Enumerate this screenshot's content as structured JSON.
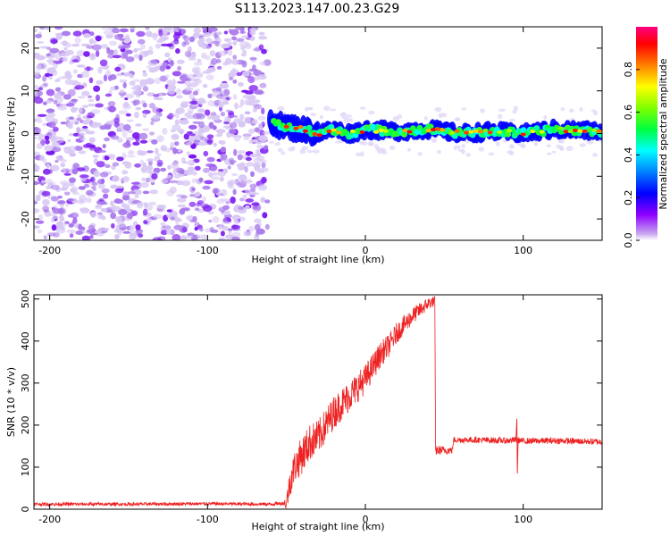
{
  "title": "S113.2023.147.00.23.G29",
  "chart_data": [
    {
      "type": "heatmap",
      "xlabel": "Height of straight line (km)",
      "ylabel": "Frequency (Hz)",
      "xlim": [
        -210,
        150
      ],
      "ylim": [
        -25,
        25
      ],
      "xticks": [
        -200,
        -100,
        0,
        100
      ],
      "yticks": [
        -20,
        -10,
        0,
        10,
        20
      ],
      "noise_region": {
        "x": [
          -210,
          -62
        ],
        "y": [
          -25,
          25
        ]
      },
      "signal_centerline": [
        {
          "x": -60,
          "y": 3
        },
        {
          "x": -55,
          "y": 2
        },
        {
          "x": -50,
          "y": 1.5
        },
        {
          "x": -40,
          "y": 1
        },
        {
          "x": -30,
          "y": 0
        },
        {
          "x": -20,
          "y": 1
        },
        {
          "x": -10,
          "y": 0
        },
        {
          "x": 0,
          "y": 1
        },
        {
          "x": 20,
          "y": 0.5
        },
        {
          "x": 40,
          "y": 1
        },
        {
          "x": 60,
          "y": 0
        },
        {
          "x": 80,
          "y": 0.5
        },
        {
          "x": 100,
          "y": 0
        },
        {
          "x": 120,
          "y": 1
        },
        {
          "x": 150,
          "y": 0.5
        }
      ],
      "colorbar": {
        "label": "Normalized spectral amplitude",
        "ticks": [
          0.0,
          0.2,
          0.4,
          0.6,
          0.8
        ],
        "range": [
          0,
          1
        ],
        "colormap": [
          "#ffffff",
          "#8f00ff",
          "#0000ff",
          "#00ffff",
          "#00ff00",
          "#ffff00",
          "#ff8000",
          "#ff0000",
          "#ff0080"
        ]
      }
    },
    {
      "type": "line",
      "xlabel": "Height of straight line (km)",
      "ylabel": "SNR (10 * v/v)",
      "xlim": [
        -210,
        150
      ],
      "ylim": [
        0,
        510
      ],
      "xticks": [
        -200,
        -100,
        0,
        100
      ],
      "yticks": [
        0,
        100,
        200,
        300,
        400,
        500
      ],
      "color": "#ee2222",
      "series": [
        {
          "points": [
            [
              -210,
              12
            ],
            [
              -150,
              12
            ],
            [
              -100,
              13
            ],
            [
              -60,
              12
            ],
            [
              -50,
              15
            ],
            [
              -48,
              60
            ],
            [
              -45,
              100
            ],
            [
              -40,
              130
            ],
            [
              -35,
              160
            ],
            [
              -30,
              170
            ],
            [
              -25,
              200
            ],
            [
              -20,
              230
            ],
            [
              -15,
              250
            ],
            [
              -10,
              270
            ],
            [
              -5,
              290
            ],
            [
              0,
              310
            ],
            [
              5,
              340
            ],
            [
              10,
              370
            ],
            [
              15,
              390
            ],
            [
              20,
              420
            ],
            [
              25,
              440
            ],
            [
              30,
              460
            ],
            [
              35,
              475
            ],
            [
              40,
              490
            ],
            [
              44,
              495
            ],
            [
              44.5,
              140
            ],
            [
              55,
              140
            ],
            [
              56,
              165
            ],
            [
              70,
              165
            ],
            [
              90,
              163
            ],
            [
              95,
              165
            ],
            [
              100,
              162
            ],
            [
              120,
              163
            ],
            [
              150,
              160
            ]
          ],
          "noise_amplitude": [
            [
              -210,
              8
            ],
            [
              -52,
              8
            ],
            [
              -48,
              70
            ],
            [
              -40,
              90
            ],
            [
              -20,
              80
            ],
            [
              0,
              70
            ],
            [
              20,
              50
            ],
            [
              40,
              30
            ],
            [
              44,
              25
            ],
            [
              56,
              15
            ],
            [
              150,
              15
            ]
          ]
        }
      ],
      "annotations": [
        {
          "x": 96,
          "spike_low": 85,
          "spike_high": 215
        }
      ]
    }
  ]
}
